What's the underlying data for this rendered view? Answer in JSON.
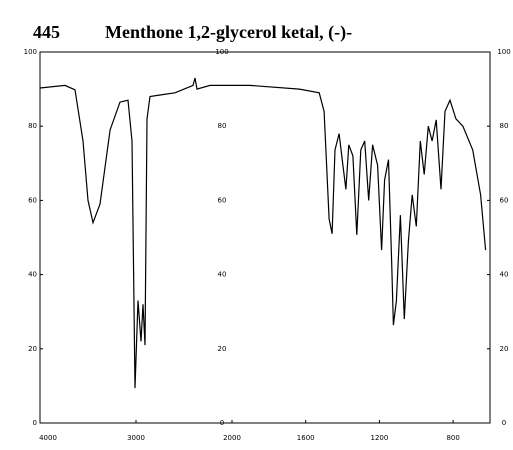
{
  "chart_data": {
    "type": "line",
    "number": "445",
    "title": "Menthone 1,2-glycerol ketal, (-)-",
    "x_scale_break": 2000,
    "xlim": [
      4000,
      600
    ],
    "xticks": [
      4000,
      3000,
      2000,
      1600,
      1200,
      800
    ],
    "ylim": [
      0,
      100
    ],
    "yticks": [
      0,
      20,
      40,
      60,
      80,
      100
    ],
    "color": "#000000",
    "x": [
      4000,
      3740,
      3635,
      3552,
      3500,
      3448,
      3375,
      3270,
      3167,
      3083,
      3042,
      3010,
      2979,
      2948,
      2927,
      2906,
      2885,
      2854,
      2750,
      2594,
      2406,
      2385,
      2365,
      2229,
      1903,
      1634,
      1527,
      1500,
      1473,
      1457,
      1441,
      1419,
      1398,
      1382,
      1366,
      1344,
      1323,
      1301,
      1280,
      1258,
      1237,
      1210,
      1188,
      1172,
      1151,
      1134,
      1124,
      1108,
      1086,
      1065,
      1043,
      1022,
      1000,
      978,
      957,
      935,
      914,
      892,
      866,
      844,
      817,
      785,
      747,
      694,
      651,
      624
    ],
    "values": [
      90.3,
      91,
      89.8,
      76,
      60,
      54,
      59,
      79,
      86.5,
      87,
      76,
      9.4,
      33,
      22,
      32,
      21,
      82,
      88,
      88.4,
      89,
      91,
      93,
      90,
      91,
      91,
      90,
      89,
      84,
      55,
      51,
      73.6,
      78,
      69.5,
      63,
      75,
      72,
      50.7,
      73.6,
      76,
      60,
      75,
      69.5,
      46.6,
      65.5,
      71,
      44,
      26.4,
      33,
      56,
      28,
      49,
      61.5,
      53,
      76,
      67,
      80,
      76,
      81.7,
      63,
      84,
      87,
      82,
      80,
      73.6,
      61.5,
      46.6
    ]
  }
}
